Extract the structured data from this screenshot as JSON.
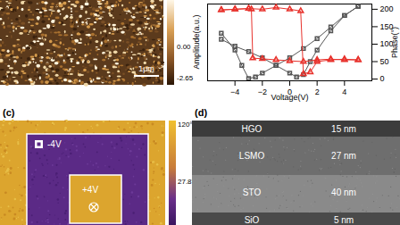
{
  "figure": {
    "panel_a": {
      "colorbar_labels": [
        "0.00",
        "-2.65"
      ],
      "scale_bar": "1μm"
    },
    "panel_c": {
      "label": "(c)",
      "colorbar_labels": [
        "120°",
        "27.8°"
      ],
      "regions": [
        "-4V",
        "+4V"
      ]
    },
    "panel_d": {
      "label": "(d)",
      "layers": [
        {
          "name": "HGO",
          "thickness": "15 nm"
        },
        {
          "name": "LSMO",
          "thickness": "27 nm"
        },
        {
          "name": "STO",
          "thickness": "40 nm"
        },
        {
          "name": "SiO",
          "thickness": "5 nm"
        }
      ]
    }
  },
  "chart_data": {
    "type": "line",
    "xlabel": "Voltage(V)",
    "ylabel": "Amplitude(a.u.)",
    "y2label": "Phase(°)",
    "xlim": [
      -6,
      6
    ],
    "xticks": [
      -4,
      -2,
      0,
      2,
      4
    ],
    "ylim": [
      0,
      1
    ],
    "yticks": [],
    "y2lim": [
      -5,
      215
    ],
    "y2ticks": [
      0,
      50,
      100,
      150,
      200
    ],
    "series": [
      {
        "color": "#555555",
        "marker": "square",
        "x": [
          5,
          4,
          3,
          2,
          1,
          0,
          -1,
          -2,
          -2.5,
          -3,
          -3.5,
          -4,
          -5
        ],
        "values": [
          0.97,
          0.85,
          0.7,
          0.55,
          0.42,
          0.3,
          0.2,
          0.1,
          0.05,
          0.03,
          0.2,
          0.4,
          0.62
        ]
      },
      {
        "color": "#555555",
        "marker": "square",
        "x": [
          -5,
          -4,
          -3,
          -2,
          -1,
          0,
          0.5,
          1,
          1.5,
          2,
          3,
          4,
          5
        ],
        "values": [
          0.54,
          0.45,
          0.38,
          0.3,
          0.2,
          0.1,
          0.05,
          0.08,
          0.25,
          0.4,
          0.65,
          0.85,
          0.97
        ]
      },
      {
        "color": "#e8322c",
        "marker": "triangle",
        "axis": "y2",
        "x": [
          5,
          4,
          3,
          2,
          1,
          0,
          -1,
          -2,
          -2.7,
          -2.8,
          -3,
          -4,
          -5
        ],
        "values": [
          55,
          55,
          57,
          55,
          50,
          52,
          55,
          58,
          60,
          200,
          202,
          200,
          198
        ]
      },
      {
        "color": "#e8322c",
        "marker": "triangle",
        "axis": "y2",
        "x": [
          -5,
          -4,
          -3,
          -2,
          -1,
          0,
          0.8,
          1,
          1.5,
          2,
          3,
          4,
          5
        ],
        "values": [
          198,
          200,
          202,
          200,
          205,
          200,
          195,
          15,
          20,
          50,
          55,
          57,
          55
        ]
      }
    ]
  }
}
